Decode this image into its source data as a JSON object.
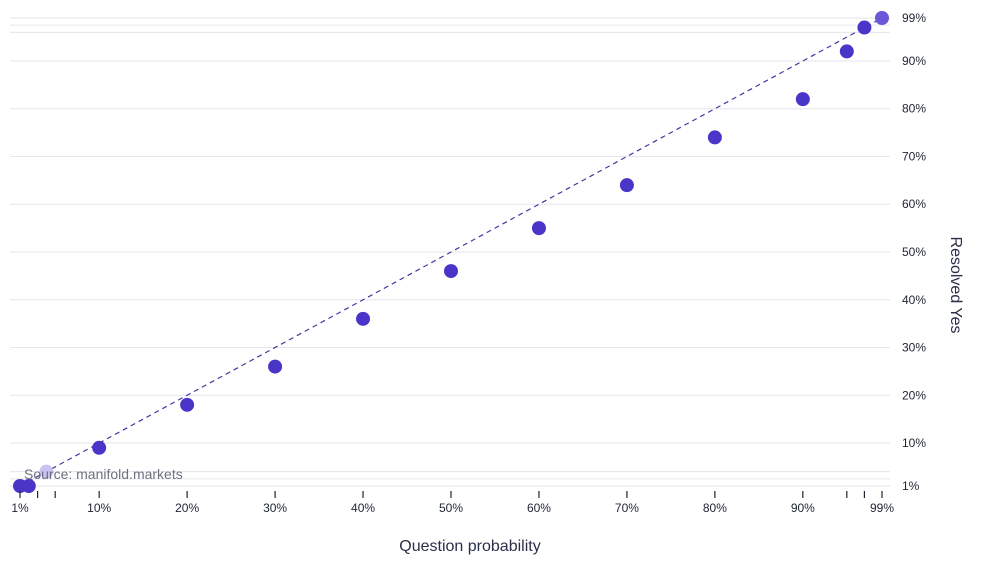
{
  "chart_data": {
    "type": "scatter",
    "title": "",
    "xlabel": "Question probability",
    "ylabel": "Resolved Yes",
    "source": "Source: manifold.markets",
    "x_ticks": [
      "1%",
      "10%",
      "20%",
      "30%",
      "40%",
      "50%",
      "60%",
      "70%",
      "80%",
      "90%",
      "99%"
    ],
    "x_tick_values": [
      1,
      10,
      20,
      30,
      40,
      50,
      60,
      70,
      80,
      90,
      99
    ],
    "x_minor_ticks": [
      3,
      5,
      95,
      97
    ],
    "y_ticks": [
      "1%",
      "10%",
      "20%",
      "30%",
      "40%",
      "50%",
      "60%",
      "70%",
      "80%",
      "90%",
      "99%"
    ],
    "y_tick_values": [
      1,
      10,
      20,
      30,
      40,
      50,
      60,
      70,
      80,
      90,
      99
    ],
    "y_minor_gridlines": [
      2.5,
      4,
      96,
      97.5
    ],
    "xlim": [
      0,
      100
    ],
    "ylim": [
      0,
      100
    ],
    "grid": true,
    "reference_line": "y = x",
    "colors": {
      "points": "#4a35c9",
      "endpoints": "#6a58d8",
      "faded_point": "#c9c3ef",
      "line": "#3f3aa0",
      "grid": "#e3e6ee"
    },
    "series": [
      {
        "x": [
          1,
          2,
          4,
          10,
          20,
          30,
          40,
          50,
          60,
          70,
          80,
          90,
          95,
          97,
          99
        ],
        "y": [
          1,
          1,
          4,
          9,
          18,
          26,
          36,
          46,
          55,
          64,
          74,
          82,
          92,
          97,
          99
        ]
      }
    ]
  }
}
